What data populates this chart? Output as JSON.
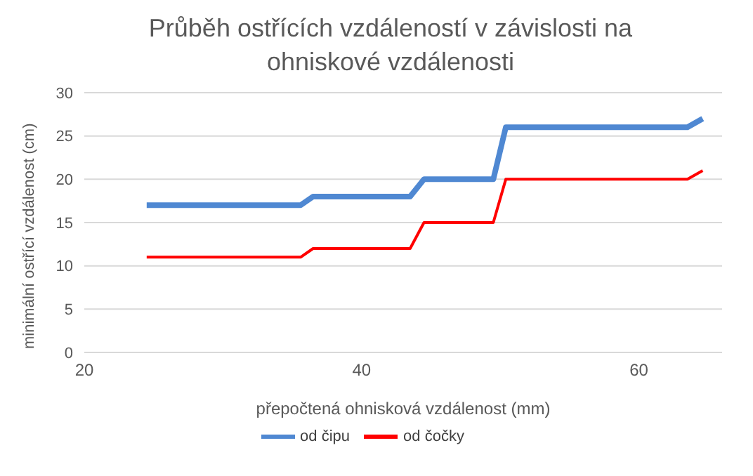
{
  "chart_data": {
    "type": "line",
    "title": "Průběh ostřících vzdáleností v závislosti na ohniskové vzdálenosti",
    "xlabel": "přepočtená ohnisková vzdálenost (mm)",
    "ylabel": "minimální ostřící vzdálenost (cm)",
    "x": [
      24.5,
      35.6,
      36.5,
      43.5,
      44.5,
      49.5,
      50.4,
      63.5,
      64.6
    ],
    "series": [
      {
        "name": "od čočky",
        "color": "#ff0000",
        "values": [
          11,
          11,
          12,
          12,
          15,
          15,
          20,
          20,
          21
        ]
      },
      {
        "name": "od čipu",
        "color": "#4f88d2",
        "values": [
          17,
          17,
          18,
          18,
          20,
          20,
          26,
          26,
          27
        ]
      }
    ],
    "xlim": [
      20,
      66
    ],
    "xticks": [
      20,
      40,
      60
    ],
    "ylim": [
      0,
      30
    ],
    "yticks": [
      0,
      5,
      10,
      15,
      20,
      25,
      30
    ],
    "grid": "y",
    "legend": "bottom",
    "marker": "none",
    "line_style": "solid"
  }
}
